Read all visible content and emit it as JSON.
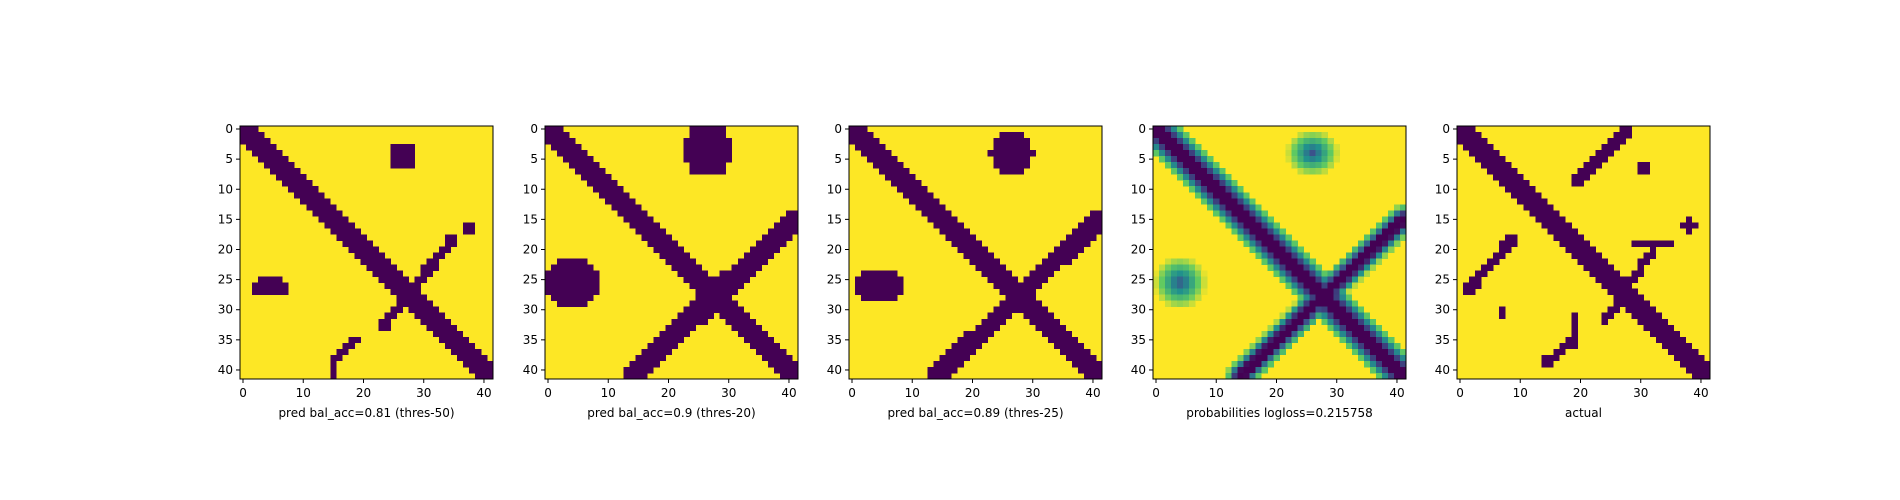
{
  "chart_data": [
    {
      "type": "heatmap",
      "panel": "binary",
      "xlabel": "pred bal_acc=0.81 (thres-50)",
      "grid_size": 42,
      "x_ticks": [
        0,
        10,
        20,
        30,
        40
      ],
      "y_ticks": [
        0,
        5,
        10,
        15,
        20,
        25,
        30,
        35,
        40
      ],
      "bands": [
        {
          "name": "main-diagonal",
          "from": [
            0,
            0
          ],
          "to": [
            41,
            41
          ],
          "width": 3
        }
      ],
      "blobs": [
        {
          "cx": 26.5,
          "cy": 4.5,
          "rx": 2.2,
          "ry": 2.2
        },
        {
          "cx": 4.5,
          "cy": 26.2,
          "rx": 3.2,
          "ry": 1.7
        },
        {
          "cx": 37.5,
          "cy": 16.5,
          "rx": 1.0,
          "ry": 1.0
        }
      ],
      "segments": [
        {
          "from": [
            35,
            18
          ],
          "to": [
            23,
            33
          ],
          "width": 1
        },
        {
          "from": [
            15,
            38
          ],
          "to": [
            19,
            35
          ],
          "width": 1
        },
        {
          "from": [
            15,
            38
          ],
          "to": [
            15,
            41
          ],
          "width": 1
        }
      ],
      "ylim": [
        41,
        0
      ],
      "xlim": [
        0,
        41
      ],
      "grid": false
    },
    {
      "type": "heatmap",
      "panel": "binary",
      "xlabel": "pred bal_acc=0.9 (thres-20)",
      "grid_size": 42,
      "x_ticks": [
        0,
        10,
        20,
        30,
        40
      ],
      "y_ticks": [
        0,
        5,
        10,
        15,
        20,
        25,
        30,
        35,
        40
      ],
      "bands": [
        {
          "name": "main-diagonal",
          "from": [
            0,
            0
          ],
          "to": [
            41,
            41
          ],
          "width": 3
        },
        {
          "name": "anti-diagonal",
          "from": [
            41,
            15
          ],
          "to": [
            14,
            41
          ],
          "width": 3
        }
      ],
      "blobs": [
        {
          "cx": 26.5,
          "cy": 3.5,
          "rx": 4.0,
          "ry": 4.5
        },
        {
          "cx": 4.0,
          "cy": 25.5,
          "rx": 4.5,
          "ry": 4.0
        }
      ],
      "segments": [],
      "ylim": [
        41,
        0
      ],
      "xlim": [
        0,
        41
      ],
      "grid": false
    },
    {
      "type": "heatmap",
      "panel": "binary",
      "xlabel": "pred bal_acc=0.89 (thres-25)",
      "grid_size": 42,
      "x_ticks": [
        0,
        10,
        20,
        30,
        40
      ],
      "y_ticks": [
        0,
        5,
        10,
        15,
        20,
        25,
        30,
        35,
        40
      ],
      "bands": [
        {
          "name": "main-diagonal",
          "from": [
            0,
            0
          ],
          "to": [
            41,
            41
          ],
          "width": 3
        },
        {
          "name": "anti-diagonal",
          "from": [
            41,
            15
          ],
          "to": [
            14,
            41
          ],
          "width": 2.5
        }
      ],
      "blobs": [
        {
          "cx": 26.5,
          "cy": 4.0,
          "rx": 3.5,
          "ry": 3.5
        },
        {
          "cx": 4.5,
          "cy": 26.0,
          "rx": 4.0,
          "ry": 3.0
        }
      ],
      "segments": [],
      "ylim": [
        41,
        0
      ],
      "xlim": [
        0,
        41
      ],
      "grid": false
    },
    {
      "type": "heatmap",
      "panel": "probabilities",
      "xlabel": "probabilities logloss=0.215758",
      "grid_size": 42,
      "x_ticks": [
        0,
        10,
        20,
        30,
        40
      ],
      "y_ticks": [
        0,
        5,
        10,
        15,
        20,
        25,
        30,
        35,
        40
      ],
      "bands": [
        {
          "name": "main-diagonal",
          "from": [
            0,
            0
          ],
          "to": [
            41,
            41
          ],
          "width": 3
        },
        {
          "name": "anti-diagonal",
          "from": [
            41,
            15
          ],
          "to": [
            14,
            41
          ],
          "width": 2
        }
      ],
      "blobs": [
        {
          "cx": 26.0,
          "cy": 4.0,
          "rx": 4.5,
          "ry": 4.0
        },
        {
          "cx": 4.0,
          "cy": 25.5,
          "rx": 4.5,
          "ry": 4.5
        }
      ],
      "segments": [],
      "colormap": "viridis",
      "ylim": [
        41,
        0
      ],
      "xlim": [
        0,
        41
      ],
      "grid": false
    },
    {
      "type": "heatmap",
      "panel": "binary",
      "xlabel": "actual",
      "grid_size": 42,
      "x_ticks": [
        0,
        10,
        20,
        30,
        40
      ],
      "y_ticks": [
        0,
        5,
        10,
        15,
        20,
        25,
        30,
        35,
        40
      ],
      "bands": [
        {
          "name": "main-diagonal",
          "from": [
            0,
            0
          ],
          "to": [
            41,
            41
          ],
          "width": 2.5
        }
      ],
      "blobs": [
        {
          "cx": 30.5,
          "cy": 6.5,
          "rx": 1.0,
          "ry": 1.0
        },
        {
          "cx": 38.0,
          "cy": 16.0,
          "rx": 1.2,
          "ry": 1.0
        },
        {
          "cx": 7.0,
          "cy": 30.5,
          "rx": 1.0,
          "ry": 1.0
        }
      ],
      "segments": [
        {
          "from": [
            28,
            0
          ],
          "to": [
            19,
            9
          ],
          "width": 1.2
        },
        {
          "from": [
            32,
            20
          ],
          "to": [
            24,
            32
          ],
          "width": 1
        },
        {
          "from": [
            29,
            19
          ],
          "to": [
            35,
            19
          ],
          "width": 1
        },
        {
          "from": [
            9,
            18
          ],
          "to": [
            1,
            27
          ],
          "width": 1.2
        },
        {
          "from": [
            14,
            39
          ],
          "to": [
            19,
            35
          ],
          "width": 1.2
        },
        {
          "from": [
            19,
            35
          ],
          "to": [
            19,
            31
          ],
          "width": 1
        }
      ],
      "ylim": [
        41,
        0
      ],
      "xlim": [
        0,
        41
      ],
      "grid": false
    }
  ],
  "colors": {
    "low": "#440154",
    "high": "#fde725",
    "viridis_stops": [
      "#440154",
      "#3b528b",
      "#21918c",
      "#5ec962",
      "#fde725"
    ]
  }
}
